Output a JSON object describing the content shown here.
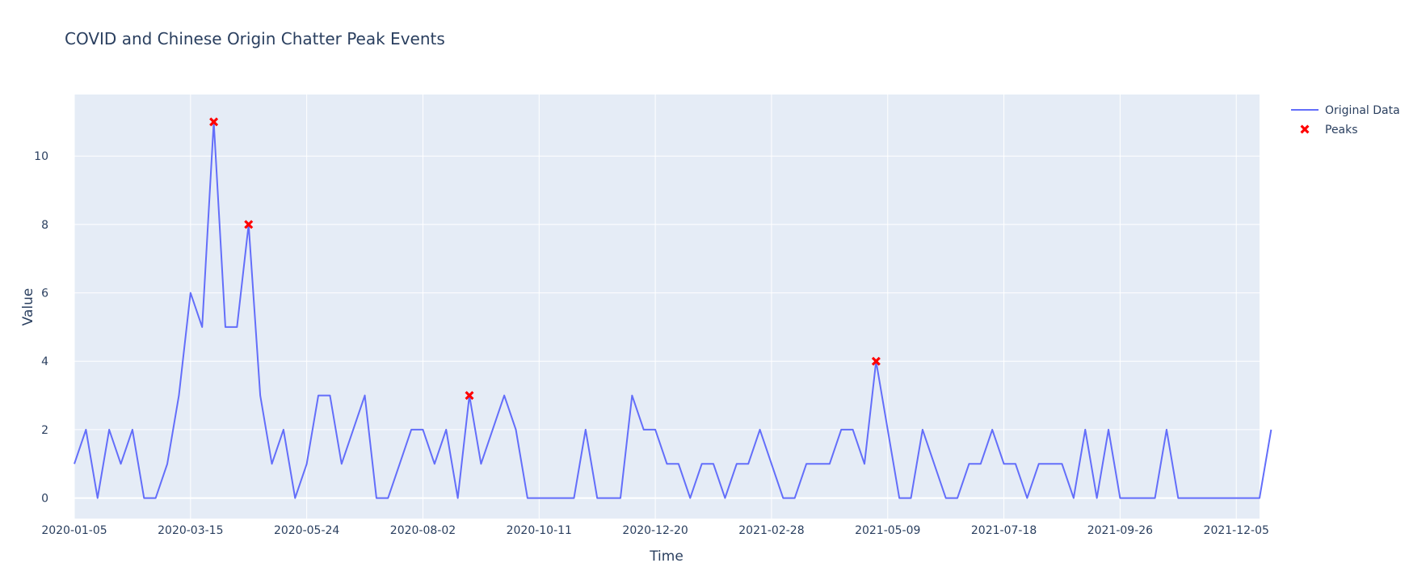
{
  "chart_data": {
    "type": "line",
    "title": "COVID and Chinese Origin Chatter Peak Events",
    "xlabel": "Time",
    "ylabel": "Value",
    "x_start": "2020-01-05",
    "x_interval_days": 7,
    "x_range": [
      "2020-01-05",
      "2021-12-19"
    ],
    "ylim": [
      -0.6,
      11.8
    ],
    "x_tick_labels": [
      "2020-01-05",
      "2020-03-15",
      "2020-05-24",
      "2020-08-02",
      "2020-10-11",
      "2020-12-20",
      "2021-02-28",
      "2021-05-09",
      "2021-07-18",
      "2021-09-26",
      "2021-12-05"
    ],
    "y_ticks": [
      0,
      2,
      4,
      6,
      8,
      10
    ],
    "grid": true,
    "legend_position": "top-right",
    "series": [
      {
        "name": "Original Data",
        "mode": "line",
        "color": "#636efa",
        "values": [
          1,
          2,
          0,
          2,
          1,
          2,
          0,
          0,
          1,
          3,
          6,
          5,
          11,
          5,
          5,
          8,
          3,
          1,
          2,
          0,
          1,
          3,
          3,
          1,
          2,
          3,
          0,
          0,
          1,
          2,
          2,
          1,
          2,
          0,
          3,
          1,
          2,
          3,
          2,
          0,
          0,
          0,
          0,
          0,
          2,
          0,
          0,
          0,
          3,
          2,
          2,
          1,
          1,
          0,
          1,
          1,
          0,
          1,
          1,
          2,
          1,
          0,
          0,
          1,
          1,
          1,
          2,
          2,
          1,
          4,
          2,
          0,
          0,
          2,
          1,
          0,
          0,
          1,
          1,
          2,
          1,
          1,
          0,
          1,
          1,
          1,
          0,
          2,
          0,
          2,
          0,
          0,
          0,
          0,
          2,
          0,
          0,
          0,
          0,
          0,
          0,
          0,
          0,
          2
        ]
      },
      {
        "name": "Peaks",
        "mode": "markers",
        "color": "#ff0000",
        "points": [
          {
            "x": "2020-03-29",
            "y": 11
          },
          {
            "x": "2020-04-19",
            "y": 8
          },
          {
            "x": "2020-08-30",
            "y": 3
          },
          {
            "x": "2021-05-02",
            "y": 4
          }
        ]
      }
    ]
  }
}
